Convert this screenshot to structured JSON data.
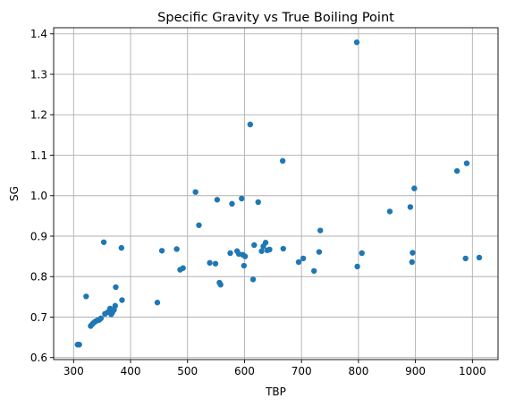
{
  "chart_data": {
    "type": "scatter",
    "title": "Specific Gravity vs True Boiling Point",
    "xlabel": "TBP",
    "ylabel": "SG",
    "xlim": [
      265,
      1045
    ],
    "ylim": [
      0.595,
      1.415
    ],
    "xticks": [
      300,
      400,
      500,
      600,
      700,
      800,
      900,
      1000
    ],
    "yticks": [
      0.6,
      0.7,
      0.8,
      0.9,
      1.0,
      1.1,
      1.2,
      1.3,
      1.4
    ],
    "ytick_labels": [
      "0.6",
      "0.7",
      "0.8",
      "0.9",
      "1.0",
      "1.1",
      "1.2",
      "1.3",
      "1.4"
    ],
    "grid": true,
    "marker_color": "#1f77b4",
    "points": [
      {
        "x": 307,
        "y": 0.632
      },
      {
        "x": 310,
        "y": 0.632
      },
      {
        "x": 322,
        "y": 0.751
      },
      {
        "x": 330,
        "y": 0.678
      },
      {
        "x": 333,
        "y": 0.683
      },
      {
        "x": 336,
        "y": 0.687
      },
      {
        "x": 339,
        "y": 0.69
      },
      {
        "x": 342,
        "y": 0.692
      },
      {
        "x": 345,
        "y": 0.693
      },
      {
        "x": 348,
        "y": 0.697
      },
      {
        "x": 353,
        "y": 0.885
      },
      {
        "x": 355,
        "y": 0.708
      },
      {
        "x": 360,
        "y": 0.712
      },
      {
        "x": 364,
        "y": 0.721
      },
      {
        "x": 366,
        "y": 0.707
      },
      {
        "x": 368,
        "y": 0.711
      },
      {
        "x": 371,
        "y": 0.718
      },
      {
        "x": 373,
        "y": 0.728
      },
      {
        "x": 374,
        "y": 0.774
      },
      {
        "x": 384,
        "y": 0.871
      },
      {
        "x": 385,
        "y": 0.742
      },
      {
        "x": 447,
        "y": 0.736
      },
      {
        "x": 455,
        "y": 0.864
      },
      {
        "x": 481,
        "y": 0.868
      },
      {
        "x": 487,
        "y": 0.817
      },
      {
        "x": 492,
        "y": 0.821
      },
      {
        "x": 514,
        "y": 1.009
      },
      {
        "x": 520,
        "y": 0.927
      },
      {
        "x": 539,
        "y": 0.834
      },
      {
        "x": 549,
        "y": 0.832
      },
      {
        "x": 552,
        "y": 0.99
      },
      {
        "x": 556,
        "y": 0.785
      },
      {
        "x": 558,
        "y": 0.78
      },
      {
        "x": 575,
        "y": 0.858
      },
      {
        "x": 578,
        "y": 0.98
      },
      {
        "x": 587,
        "y": 0.863
      },
      {
        "x": 590,
        "y": 0.856
      },
      {
        "x": 595,
        "y": 0.993
      },
      {
        "x": 597,
        "y": 0.854
      },
      {
        "x": 599,
        "y": 0.827
      },
      {
        "x": 601,
        "y": 0.85
      },
      {
        "x": 610,
        "y": 1.176
      },
      {
        "x": 615,
        "y": 0.793
      },
      {
        "x": 617,
        "y": 0.878
      },
      {
        "x": 624,
        "y": 0.984
      },
      {
        "x": 630,
        "y": 0.863
      },
      {
        "x": 633,
        "y": 0.875
      },
      {
        "x": 637,
        "y": 0.884
      },
      {
        "x": 640,
        "y": 0.865
      },
      {
        "x": 644,
        "y": 0.867
      },
      {
        "x": 667,
        "y": 1.086
      },
      {
        "x": 668,
        "y": 0.869
      },
      {
        "x": 695,
        "y": 0.836
      },
      {
        "x": 703,
        "y": 0.845
      },
      {
        "x": 722,
        "y": 0.814
      },
      {
        "x": 731,
        "y": 0.861
      },
      {
        "x": 733,
        "y": 0.914
      },
      {
        "x": 797,
        "y": 1.379
      },
      {
        "x": 798,
        "y": 0.825
      },
      {
        "x": 806,
        "y": 0.858
      },
      {
        "x": 855,
        "y": 0.961
      },
      {
        "x": 891,
        "y": 0.972
      },
      {
        "x": 894,
        "y": 0.836
      },
      {
        "x": 895,
        "y": 0.859
      },
      {
        "x": 898,
        "y": 1.018
      },
      {
        "x": 973,
        "y": 1.061
      },
      {
        "x": 988,
        "y": 0.845
      },
      {
        "x": 990,
        "y": 1.08
      },
      {
        "x": 1012,
        "y": 0.847
      }
    ]
  }
}
